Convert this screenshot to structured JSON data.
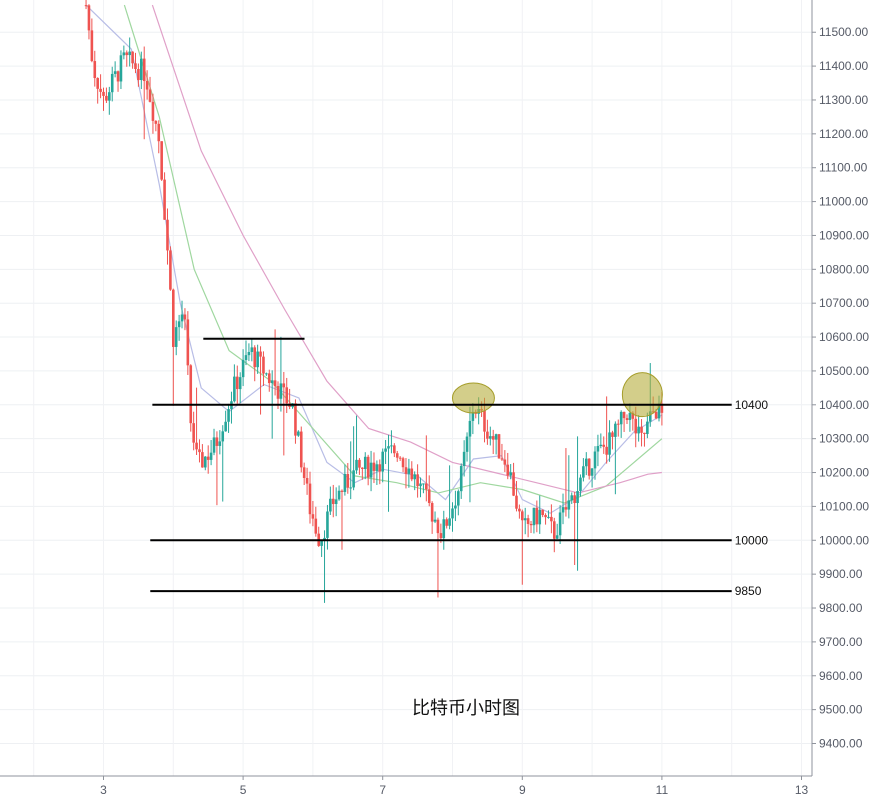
{
  "chart_data": {
    "type": "candlestick",
    "title": "比特币小时图",
    "xlabel": "",
    "ylabel": "",
    "x_ticks": [
      "3",
      "5",
      "7",
      "9",
      "11",
      "13"
    ],
    "x_range": [
      2.0,
      13.0
    ],
    "y_ticks": [
      "9400.00",
      "9500.00",
      "9600.00",
      "9700.00",
      "9800.00",
      "9900.00",
      "10000.00",
      "10100.00",
      "10200.00",
      "10300.00",
      "10400.00",
      "10500.00",
      "10600.00",
      "10700.00",
      "10800.00",
      "10900.00",
      "11000.00",
      "11100.00",
      "11200.00",
      "11300.00",
      "11400.00",
      "11500.00"
    ],
    "y_range": [
      9340,
      11580
    ],
    "grid": true,
    "colors": {
      "up": "#26a69a",
      "down": "#ef5350",
      "ma_fast": "#b8bde6",
      "ma_mid": "#9fd79f",
      "ma_slow": "#e0a0c8",
      "highlight": "#b5ad3c",
      "level_line": "#000000"
    },
    "horizontal_levels": [
      {
        "label": "10400",
        "value": 10400,
        "x_from": 3.7,
        "x_to": 12.0
      },
      {
        "label": "10000",
        "value": 10000,
        "x_from": 3.67,
        "x_to": 12.0
      },
      {
        "label": "9850",
        "value": 9850,
        "x_from": 3.67,
        "x_to": 12.0
      },
      {
        "label": "",
        "value": 10595,
        "x_from": 4.43,
        "x_to": 5.88
      }
    ],
    "highlights": [
      {
        "x": 8.3,
        "y": 10420
      },
      {
        "x": 10.72,
        "y": 10430
      }
    ],
    "key_points": [
      {
        "x": 2.75,
        "y": 11580
      },
      {
        "x": 2.85,
        "y": 11400
      },
      {
        "x": 3.0,
        "y": 11300
      },
      {
        "x": 3.3,
        "y": 11420
      },
      {
        "x": 3.6,
        "y": 11380
      },
      {
        "x": 3.8,
        "y": 11180
      },
      {
        "x": 3.92,
        "y": 10850
      },
      {
        "x": 4.0,
        "y": 10600
      },
      {
        "x": 4.15,
        "y": 10680
      },
      {
        "x": 4.25,
        "y": 10350
      },
      {
        "x": 4.35,
        "y": 10220
      },
      {
        "x": 4.6,
        "y": 10280
      },
      {
        "x": 4.85,
        "y": 10440
      },
      {
        "x": 5.1,
        "y": 10560
      },
      {
        "x": 5.4,
        "y": 10470
      },
      {
        "x": 5.7,
        "y": 10400
      },
      {
        "x": 5.95,
        "y": 10100
      },
      {
        "x": 6.1,
        "y": 10000
      },
      {
        "x": 6.3,
        "y": 10120
      },
      {
        "x": 6.6,
        "y": 10200
      },
      {
        "x": 6.9,
        "y": 10230
      },
      {
        "x": 7.2,
        "y": 10270
      },
      {
        "x": 7.5,
        "y": 10170
      },
      {
        "x": 7.85,
        "y": 10020
      },
      {
        "x": 8.1,
        "y": 10160
      },
      {
        "x": 8.3,
        "y": 10400
      },
      {
        "x": 8.55,
        "y": 10310
      },
      {
        "x": 8.8,
        "y": 10220
      },
      {
        "x": 9.0,
        "y": 10030
      },
      {
        "x": 9.25,
        "y": 10080
      },
      {
        "x": 9.45,
        "y": 10020
      },
      {
        "x": 9.7,
        "y": 10120
      },
      {
        "x": 10.0,
        "y": 10240
      },
      {
        "x": 10.3,
        "y": 10300
      },
      {
        "x": 10.5,
        "y": 10380
      },
      {
        "x": 10.7,
        "y": 10290
      },
      {
        "x": 10.9,
        "y": 10390
      },
      {
        "x": 11.0,
        "y": 10370
      }
    ],
    "moving_averages": [
      {
        "color": "ma_fast",
        "points": [
          [
            2.75,
            11580
          ],
          [
            3.4,
            11450
          ],
          [
            3.8,
            11050
          ],
          [
            4.1,
            10700
          ],
          [
            4.4,
            10450
          ],
          [
            4.8,
            10380
          ],
          [
            5.3,
            10460
          ],
          [
            5.8,
            10420
          ],
          [
            6.2,
            10230
          ],
          [
            6.6,
            10170
          ],
          [
            7.0,
            10210
          ],
          [
            7.5,
            10190
          ],
          [
            7.9,
            10120
          ],
          [
            8.3,
            10240
          ],
          [
            8.7,
            10250
          ],
          [
            9.0,
            10120
          ],
          [
            9.4,
            10080
          ],
          [
            9.8,
            10130
          ],
          [
            10.2,
            10230
          ],
          [
            10.6,
            10320
          ],
          [
            11.0,
            10370
          ]
        ]
      },
      {
        "color": "ma_mid",
        "points": [
          [
            3.3,
            11580
          ],
          [
            3.8,
            11250
          ],
          [
            4.3,
            10800
          ],
          [
            4.8,
            10560
          ],
          [
            5.4,
            10470
          ],
          [
            6.0,
            10330
          ],
          [
            6.6,
            10190
          ],
          [
            7.2,
            10170
          ],
          [
            7.8,
            10140
          ],
          [
            8.4,
            10170
          ],
          [
            9.0,
            10150
          ],
          [
            9.6,
            10110
          ],
          [
            10.2,
            10160
          ],
          [
            10.6,
            10230
          ],
          [
            11.0,
            10300
          ]
        ]
      },
      {
        "color": "ma_slow",
        "points": [
          [
            3.7,
            11580
          ],
          [
            4.4,
            11150
          ],
          [
            5.0,
            10900
          ],
          [
            5.6,
            10680
          ],
          [
            6.2,
            10470
          ],
          [
            6.8,
            10330
          ],
          [
            7.4,
            10290
          ],
          [
            8.0,
            10230
          ],
          [
            8.6,
            10200
          ],
          [
            9.2,
            10170
          ],
          [
            9.8,
            10140
          ],
          [
            10.4,
            10170
          ],
          [
            10.8,
            10195
          ],
          [
            11.0,
            10200
          ]
        ]
      }
    ]
  }
}
